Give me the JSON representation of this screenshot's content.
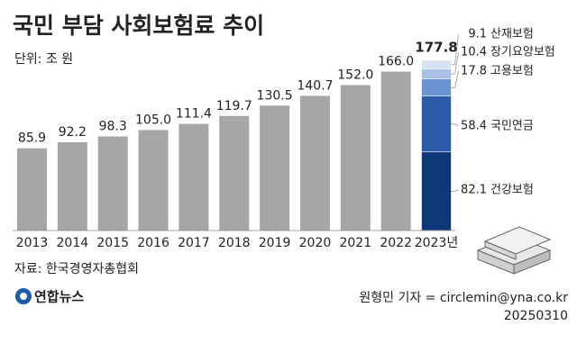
{
  "chart_data": {
    "type": "bar",
    "title": "국민 부담 사회보험료 추이",
    "unit": "단위: 조 원",
    "categories": [
      "2013",
      "2014",
      "2015",
      "2016",
      "2017",
      "2018",
      "2019",
      "2020",
      "2021",
      "2022",
      "2023년"
    ],
    "values": [
      85.9,
      92.2,
      98.3,
      105.0,
      111.4,
      119.7,
      130.5,
      140.7,
      152.0,
      166.0,
      177.8
    ],
    "value_labels": [
      "85.9",
      "92.2",
      "98.3",
      "105.0",
      "111.4",
      "119.7",
      "130.5",
      "140.7",
      "152.0",
      "166.0",
      "177.8"
    ],
    "color": "#a6a6a6",
    "breakdown": [
      {
        "name": "건강보험",
        "color": "#0d3777",
        "value": 82.1
      },
      {
        "name": "국민연금",
        "color": "#2b5ba6",
        "value": 58.4
      },
      {
        "name": "고용보험",
        "color": "#6b93d0",
        "value": 17.8
      },
      {
        "name": "장기요양보험",
        "color": "#a9c1e7",
        "value": 10.4
      },
      {
        "name": "산재보험",
        "color": "#d6e2f4",
        "value": 9.1
      }
    ],
    "source": "자료: 한국경영자총협회"
  },
  "footer": {
    "logo": "연합뉴스",
    "credit": "원형민 기자 = circlemin@yna.co.kr",
    "date": "20250310"
  }
}
